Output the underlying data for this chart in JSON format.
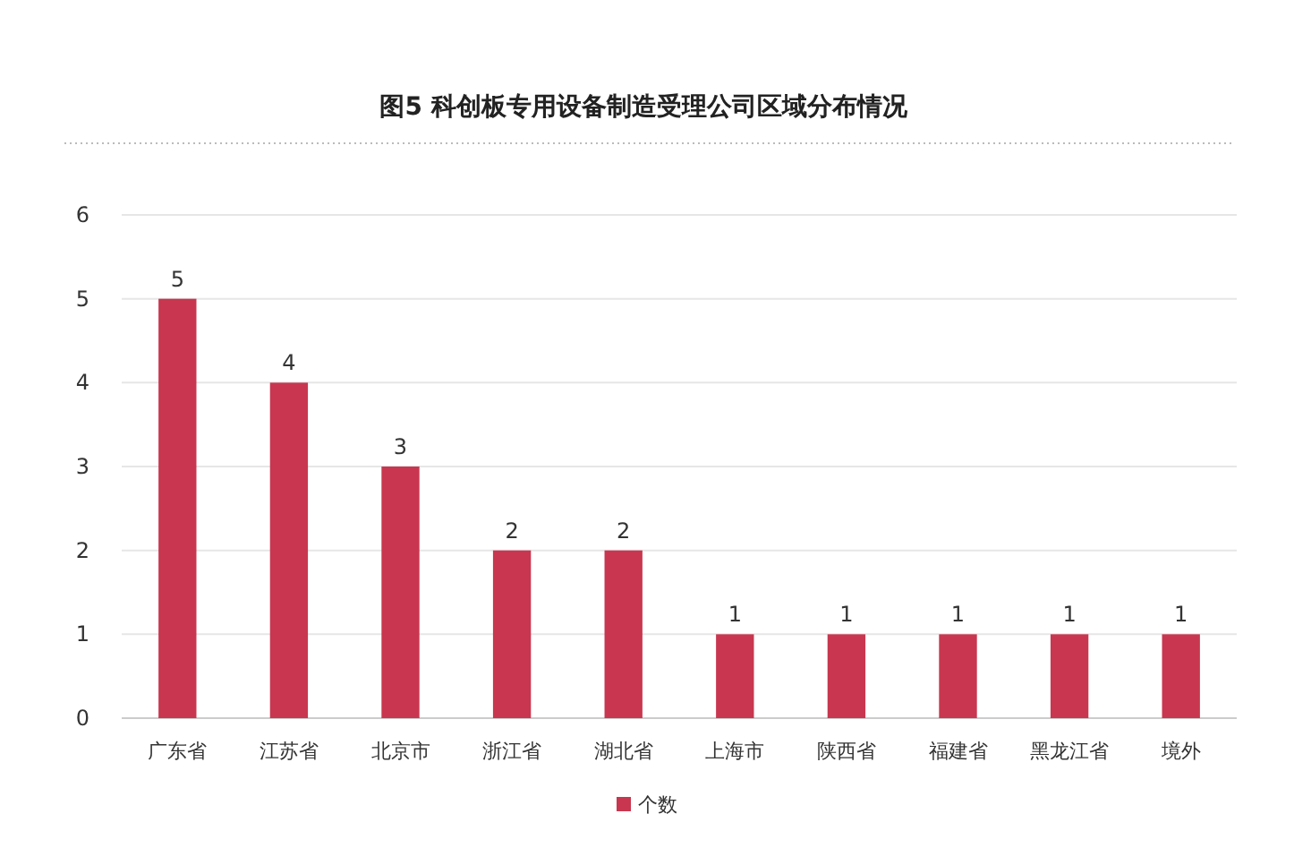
{
  "chart_data": {
    "type": "bar",
    "title": "图5  科创板专用设备制造受理公司区域分布情况",
    "categories": [
      "广东省",
      "江苏省",
      "北京市",
      "浙江省",
      "湖北省",
      "上海市",
      "陕西省",
      "福建省",
      "黑龙江省",
      "境外"
    ],
    "series": [
      {
        "name": "个数",
        "color": "#c8374f",
        "values": [
          5,
          4,
          3,
          2,
          2,
          1,
          1,
          1,
          1,
          1
        ]
      }
    ],
    "ylim": [
      0,
      6
    ],
    "yticks": [
      0,
      1,
      2,
      3,
      4,
      5,
      6
    ],
    "grid": "y",
    "legend": "bottom",
    "data_labels": true
  }
}
